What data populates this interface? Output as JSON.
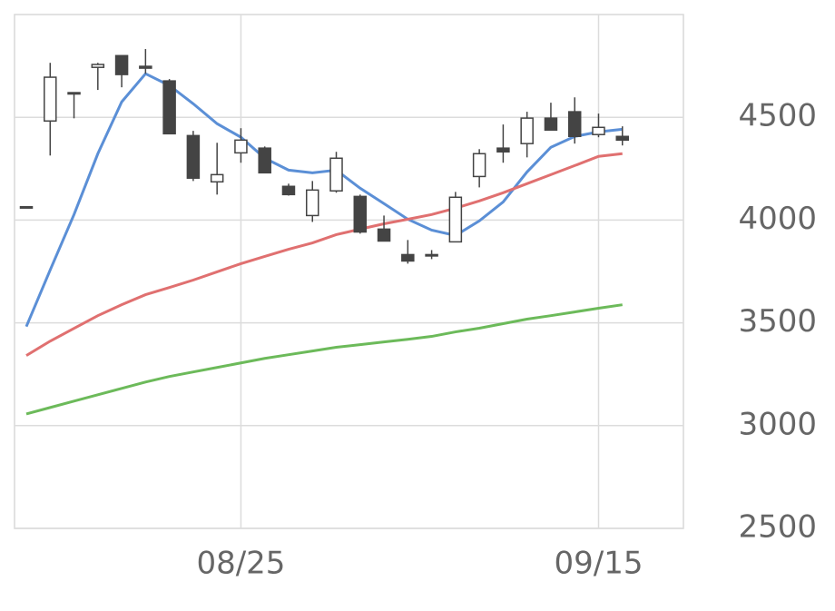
{
  "chart_data": {
    "type": "candlestick",
    "categories": [
      null,
      null,
      null,
      null,
      null,
      null,
      null,
      null,
      null,
      "08/25",
      null,
      null,
      null,
      null,
      null,
      null,
      null,
      null,
      null,
      null,
      null,
      null,
      null,
      null,
      "09/15",
      null
    ],
    "open": [
      4065,
      4482,
      4620,
      4743,
      4800,
      4748,
      4677,
      4411,
      4186,
      4327,
      4350,
      4164,
      4022,
      4142,
      4115,
      3956,
      3832,
      3832,
      3894,
      4212,
      4350,
      4372,
      4496,
      4527,
      4416,
      4407
    ],
    "high": [
      4065,
      4765,
      4620,
      4765,
      4800,
      4832,
      4686,
      4434,
      4376,
      4447,
      4358,
      4177,
      4190,
      4332,
      4124,
      4022,
      3903,
      3854,
      4137,
      4345,
      4465,
      4527,
      4571,
      4597,
      4518,
      4456
    ],
    "low": [
      4065,
      4314,
      4495,
      4633,
      4646,
      4712,
      4420,
      4190,
      4124,
      4279,
      4230,
      4119,
      3991,
      4133,
      3934,
      3898,
      3788,
      3810,
      3894,
      4159,
      4279,
      4305,
      4438,
      4372,
      4403,
      4363
    ],
    "close": [
      4065,
      4695,
      4620,
      4757,
      4708,
      4739,
      4420,
      4204,
      4221,
      4389,
      4230,
      4124,
      4146,
      4301,
      3942,
      3898,
      3801,
      3832,
      4111,
      4323,
      4332,
      4496,
      4438,
      4407,
      4451,
      4389
    ],
    "up_color": "#ffffff",
    "down_color": "#444444",
    "series": [
      {
        "color": "#5b8fd6",
        "values": [
          3482,
          3757,
          4027,
          4323,
          4575,
          4712,
          4655,
          4566,
          4469,
          4403,
          4301,
          4243,
          4230,
          4243,
          4155,
          4080,
          4004,
          3951,
          3925,
          3996,
          4088,
          4234,
          4354,
          4407,
          4429,
          4442
        ]
      },
      {
        "color": "#e07070",
        "values": [
          3341,
          3411,
          3473,
          3535,
          3588,
          3637,
          3672,
          3708,
          3748,
          3788,
          3823,
          3858,
          3889,
          3929,
          3956,
          3982,
          4004,
          4027,
          4058,
          4093,
          4133,
          4177,
          4221,
          4265,
          4310,
          4323
        ]
      },
      {
        "color": "#6cba5a",
        "values": [
          3057,
          3088,
          3119,
          3150,
          3181,
          3212,
          3239,
          3261,
          3283,
          3305,
          3327,
          3345,
          3363,
          3381,
          3394,
          3407,
          3420,
          3434,
          3456,
          3474,
          3496,
          3518,
          3535,
          3553,
          3571,
          3588
        ]
      }
    ],
    "ylim": [
      2500,
      5000
    ],
    "yticks": [
      2500,
      3000,
      3500,
      4000,
      4500
    ],
    "grid": true
  }
}
